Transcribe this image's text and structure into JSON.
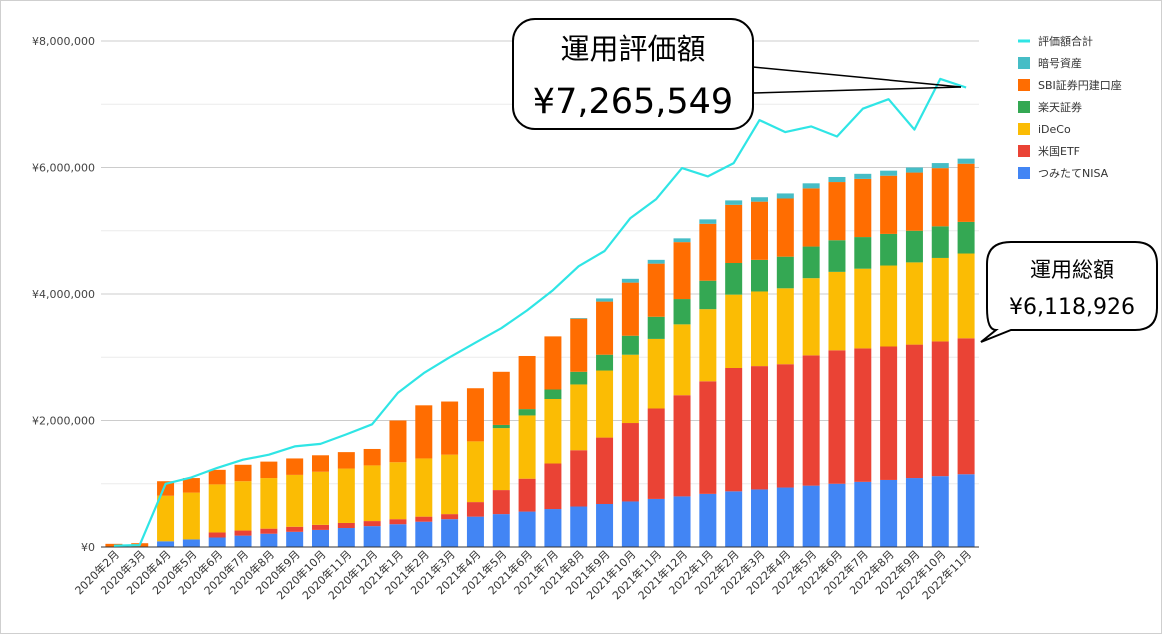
{
  "chart_data": {
    "type": "bar",
    "stacked": true,
    "title": "",
    "xlabel": "",
    "ylabel": "",
    "ylim": [
      0,
      8000000
    ],
    "grid": true,
    "legend_position": "right",
    "y_ticks": [
      {
        "value": 0,
        "label": "¥0"
      },
      {
        "value": 2000000,
        "label": "¥2,000,000"
      },
      {
        "value": 4000000,
        "label": "¥4,000,000"
      },
      {
        "value": 6000000,
        "label": "¥6,000,000"
      },
      {
        "value": 8000000,
        "label": "¥8,000,000"
      }
    ],
    "categories": [
      "2020年2月",
      "2020年3月",
      "2020年4月",
      "2020年5月",
      "2020年6月",
      "2020年7月",
      "2020年8月",
      "2020年9月",
      "2020年10月",
      "2020年11月",
      "2020年12月",
      "2021年1月",
      "2021年2月",
      "2021年3月",
      "2021年4月",
      "2021年5月",
      "2021年6月",
      "2021年7月",
      "2021年8月",
      "2021年9月",
      "2021年10月",
      "2021年11月",
      "2021年12月",
      "2022年1月",
      "2022年2月",
      "2022年3月",
      "2022年4月",
      "2022年5月",
      "2022年6月",
      "2022年7月",
      "2022年8月",
      "2022年9月",
      "2022年10月",
      "2022年11月"
    ],
    "series": [
      {
        "name": "つみたてNISA",
        "color": "#4285f4",
        "values": [
          0,
          0,
          90000,
          120000,
          150000,
          180000,
          210000,
          240000,
          270000,
          300000,
          330000,
          360000,
          400000,
          440000,
          480000,
          520000,
          560000,
          600000,
          640000,
          680000,
          720000,
          760000,
          800000,
          840000,
          880000,
          910000,
          940000,
          970000,
          1000000,
          1030000,
          1060000,
          1090000,
          1120000,
          1150000
        ]
      },
      {
        "name": "米国ETF",
        "color": "#ea4335",
        "values": [
          0,
          0,
          0,
          0,
          80000,
          80000,
          80000,
          80000,
          80000,
          80000,
          80000,
          80000,
          80000,
          80000,
          230000,
          380000,
          520000,
          720000,
          890000,
          1050000,
          1240000,
          1430000,
          1600000,
          1780000,
          1950000,
          1950000,
          1950000,
          2060000,
          2110000,
          2110000,
          2110000,
          2110000,
          2130000,
          2150000
        ]
      },
      {
        "name": "iDeCo",
        "color": "#fbbc04",
        "values": [
          0,
          0,
          720000,
          740000,
          760000,
          780000,
          800000,
          820000,
          840000,
          860000,
          880000,
          900000,
          920000,
          940000,
          960000,
          980000,
          1000000,
          1020000,
          1040000,
          1060000,
          1080000,
          1100000,
          1120000,
          1140000,
          1160000,
          1180000,
          1200000,
          1220000,
          1240000,
          1260000,
          1280000,
          1300000,
          1320000,
          1340000
        ]
      },
      {
        "name": "楽天証券",
        "color": "#34a853",
        "values": [
          0,
          0,
          0,
          0,
          0,
          0,
          0,
          0,
          0,
          0,
          0,
          0,
          0,
          0,
          0,
          50000,
          100000,
          150000,
          200000,
          250000,
          300000,
          350000,
          400000,
          450000,
          500000,
          500000,
          500000,
          500000,
          500000,
          500000,
          500000,
          500000,
          500000,
          500000
        ]
      },
      {
        "name": "SBI証券円建口座",
        "color": "#ff6d01",
        "values": [
          50000,
          60000,
          230000,
          230000,
          230000,
          260000,
          260000,
          260000,
          260000,
          260000,
          260000,
          660000,
          840000,
          840000,
          840000,
          840000,
          840000,
          840000,
          840000,
          840000,
          840000,
          840000,
          900000,
          900000,
          920000,
          920000,
          920000,
          920000,
          920000,
          920000,
          920000,
          920000,
          920000,
          920000
        ]
      },
      {
        "name": "暗号資産",
        "color": "#46bdc6",
        "values": [
          0,
          0,
          0,
          0,
          0,
          0,
          0,
          0,
          0,
          0,
          0,
          0,
          0,
          0,
          0,
          0,
          0,
          0,
          10000,
          50000,
          60000,
          60000,
          60000,
          70000,
          70000,
          70000,
          80000,
          80000,
          80000,
          80000,
          80000,
          80000,
          80000,
          80000
        ]
      }
    ],
    "line_series": {
      "name": "評価額合計",
      "color": "#2fe5e5",
      "values": [
        20000,
        30000,
        1000000,
        1100000,
        1250000,
        1380000,
        1460000,
        1590000,
        1630000,
        1780000,
        1940000,
        2440000,
        2750000,
        3000000,
        3230000,
        3460000,
        3740000,
        4060000,
        4440000,
        4680000,
        5200000,
        5500000,
        5990000,
        5860000,
        6070000,
        6750000,
        6560000,
        6650000,
        6490000,
        6930000,
        7080000,
        6600000,
        7400000,
        7265549
      ]
    },
    "annotations": [
      {
        "id": "valuation",
        "title": "運用評価額",
        "value": "¥7,265,549"
      },
      {
        "id": "total",
        "title": "運用総額",
        "value": "¥6,118,926"
      }
    ]
  }
}
